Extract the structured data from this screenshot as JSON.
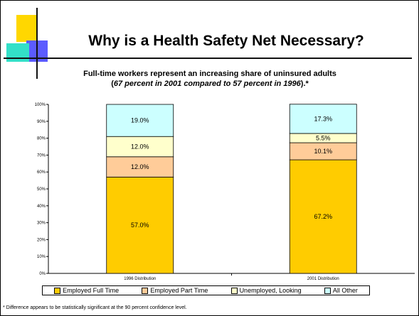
{
  "slide": {
    "title": "Why is a Health Safety Net Necessary?",
    "subtitle_line1": "Full-time workers represent an increasing share of uninsured adults",
    "subtitle_open": "(",
    "subtitle_italic": "67 percent in 2001 compared to 57 percent in 1996",
    "subtitle_close": ").*",
    "footnote": "* Difference appears to be statistically significant at the 90 percent confidence level."
  },
  "colors": {
    "employed_full_time": "#ffcc00",
    "employed_part_time": "#ffcc99",
    "unemployed_looking": "#ffffcc",
    "all_other": "#ccffff"
  },
  "chart_data": {
    "type": "bar",
    "stacked": true,
    "percent": true,
    "categories": [
      "1996 Distribution",
      "2001 Distribution"
    ],
    "series": [
      {
        "name": "Employed Full Time",
        "values": [
          57.0,
          67.2
        ],
        "labels": [
          "57.0%",
          "67.2%"
        ]
      },
      {
        "name": "Employed Part Time",
        "values": [
          12.0,
          10.1
        ],
        "labels": [
          "12.0%",
          "10.1%"
        ]
      },
      {
        "name": "Unemployed, Looking",
        "values": [
          12.0,
          5.5
        ],
        "labels": [
          "12.0%",
          "5.5%"
        ]
      },
      {
        "name": "All Other",
        "values": [
          19.0,
          17.3
        ],
        "labels": [
          "19.0%",
          "17.3%"
        ]
      }
    ],
    "ylim": [
      0,
      100
    ],
    "y_ticks": [
      "0%",
      "10%",
      "20%",
      "30%",
      "40%",
      "50%",
      "60%",
      "70%",
      "80%",
      "90%",
      "100%"
    ],
    "legend_position": "bottom"
  }
}
